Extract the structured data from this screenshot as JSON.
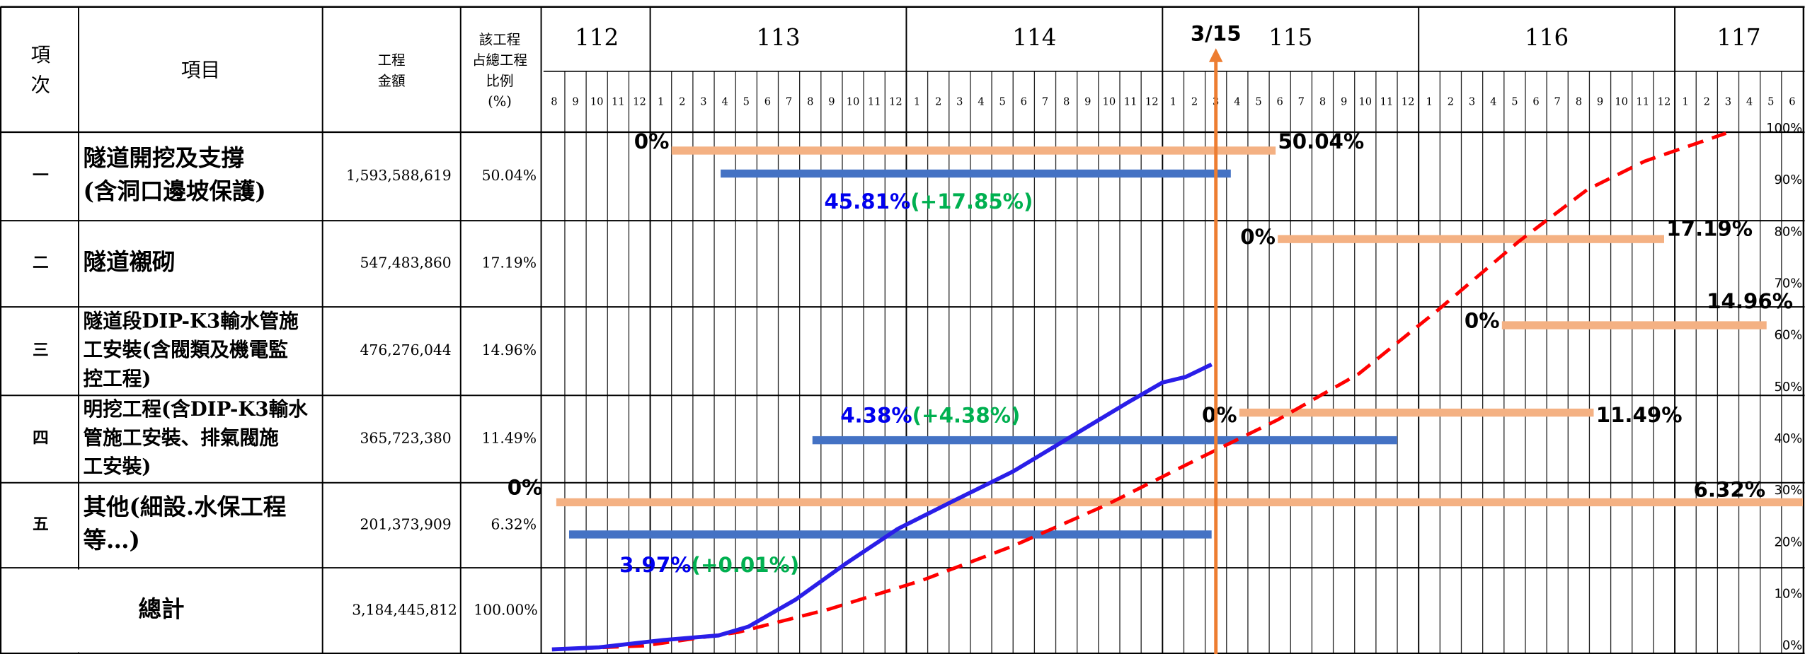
{
  "chart_data": {
    "type": "gantt",
    "table": {
      "headers": [
        [
          "項",
          "次"
        ],
        [
          "項目"
        ],
        [
          "工程",
          "金額"
        ],
        [
          "該工程",
          "占總工程",
          "比例",
          "(%)"
        ]
      ],
      "rows": [
        {
          "no": "一",
          "item": [
            "隧道開挖及支撐",
            "(含洞口邊坡保護)"
          ],
          "amount": "1,593,588,619",
          "ratio": "50.04%"
        },
        {
          "no": "二",
          "item": [
            "隧道襯砌"
          ],
          "amount": "547,483,860",
          "ratio": "17.19%"
        },
        {
          "no": "三",
          "item": [
            "隧道段DIP-K3輸水管施",
            "工安裝(含閥類及機電監",
            "控工程)"
          ],
          "amount": "476,276,044",
          "ratio": "14.96%"
        },
        {
          "no": "四",
          "item": [
            "明挖工程(含DIP-K3輸水",
            "管施工安裝、排氣閥施",
            "工安裝)"
          ],
          "amount": "365,723,380",
          "ratio": "11.49%"
        },
        {
          "no": "五",
          "item": [
            "其他(細設.水保工程",
            "等…)"
          ],
          "amount": "201,373,909",
          "ratio": "6.32%"
        }
      ],
      "total": {
        "label": "總計",
        "amount": "3,184,445,812",
        "ratio": "100.00%"
      }
    },
    "years": [
      {
        "label": 112,
        "months": [
          8,
          9,
          10,
          11,
          12
        ]
      },
      {
        "label": 113,
        "months": [
          1,
          2,
          3,
          4,
          5,
          6,
          7,
          8,
          9,
          10,
          11,
          12
        ]
      },
      {
        "label": 114,
        "months": [
          1,
          2,
          3,
          4,
          5,
          6,
          7,
          8,
          9,
          10,
          11,
          12
        ]
      },
      {
        "label": 115,
        "months": [
          1,
          2,
          3,
          4,
          5,
          6,
          7,
          8,
          9,
          10,
          11,
          12
        ]
      },
      {
        "label": 116,
        "months": [
          1,
          2,
          3,
          4,
          5,
          6,
          7,
          8,
          9,
          10,
          11,
          12
        ]
      },
      {
        "label": 117,
        "months": [
          1,
          2,
          3,
          4,
          5,
          6
        ]
      }
    ],
    "y2lim": [
      0,
      100
    ],
    "y2ticks": [
      {
        "value": 0,
        "label": "0%"
      },
      {
        "value": 10,
        "label": "10%"
      },
      {
        "value": 20,
        "label": "20%"
      },
      {
        "value": 30,
        "label": "30%"
      },
      {
        "value": 40,
        "label": "40%"
      },
      {
        "value": 50,
        "label": "50%"
      },
      {
        "value": 60,
        "label": "60%"
      },
      {
        "value": 70,
        "label": "70%"
      },
      {
        "value": 80,
        "label": "80%"
      },
      {
        "value": 90,
        "label": "90%"
      },
      {
        "value": 100,
        "label": "100%"
      }
    ],
    "marker": {
      "label": "3/15",
      "x": 31.5
    },
    "bars": [
      {
        "planned": {
          "start": 6.0,
          "end": 34.3,
          "start_label": "0%",
          "end_label": "50.04%"
        },
        "actual": {
          "start": 8.3,
          "end": 32.2,
          "label": "45.81%",
          "delta": "(+17.85%)"
        }
      },
      {
        "planned": {
          "start": 34.4,
          "end": 52.5,
          "start_label": "0%",
          "end_label": "17.19%"
        }
      },
      {
        "planned": {
          "start": 44.9,
          "end": 57.3,
          "start_label": "0%",
          "end_label": "14.96%"
        }
      },
      {
        "planned": {
          "start": 32.6,
          "end": 49.2,
          "start_label": "0%",
          "end_label": "11.49%"
        },
        "actual": {
          "start": 12.6,
          "end": 40.0,
          "label": "4.38%",
          "delta": "(+4.38%)"
        }
      },
      {
        "planned": {
          "start": 0.6,
          "end": 59,
          "start_label": "0%",
          "end_label": "6.32%"
        },
        "actual": {
          "start": 1.2,
          "end": 31.3,
          "label": "3.97%",
          "delta": "(+0.01%)"
        }
      }
    ],
    "series": [
      {
        "color": "#ff0000",
        "dashed": true,
        "x": [
          0.4,
          4.7,
          9.1,
          13.4,
          17.7,
          22.0,
          26.3,
          30.6,
          34.4,
          38.2,
          41.9,
          45.7,
          48.9,
          51.6,
          55.4
        ],
        "values": [
          0,
          0.7,
          3.3,
          7.8,
          13.3,
          20,
          27.8,
          36.7,
          44.4,
          53.3,
          65.6,
          78.9,
          88.9,
          94.4,
          99.8
        ]
      },
      {
        "color": "#2a1ee8",
        "dashed": false,
        "x": [
          0.4,
          2.6,
          5.6,
          8.2,
          9.6,
          11.8,
          14.2,
          16.6,
          19.3,
          22.0,
          24.7,
          27.4,
          29.0,
          30.1,
          31.3
        ],
        "values": [
          0,
          0.4,
          1.8,
          2.7,
          4.4,
          9.6,
          16.7,
          23.3,
          28.9,
          34.4,
          41.1,
          47.8,
          51.6,
          52.7,
          55.1
        ]
      }
    ]
  }
}
